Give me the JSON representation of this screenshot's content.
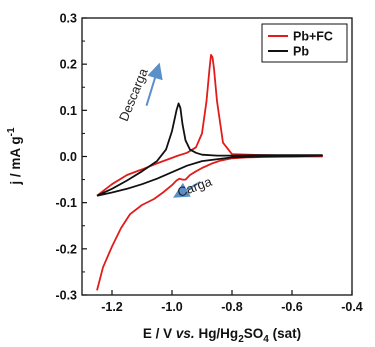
{
  "chart_data": {
    "type": "line",
    "xlabel_parts": [
      "E / V ",
      "vs.",
      " Hg/Hg",
      "2",
      "SO",
      "4",
      " (sat)"
    ],
    "ylabel_parts": [
      "j / mA g",
      "-1"
    ],
    "xlim": [
      -1.3,
      -0.4
    ],
    "ylim": [
      -0.3,
      0.3
    ],
    "x_ticks": [
      -1.2,
      -1.0,
      -0.8,
      -0.6,
      -0.4
    ],
    "x_tick_labels": [
      "-1.2",
      "-1.0",
      "-0.8",
      "-0.6",
      "-0.4"
    ],
    "y_ticks": [
      -0.3,
      -0.2,
      -0.1,
      0.0,
      0.1,
      0.2,
      0.3
    ],
    "y_tick_labels": [
      "-0.3",
      "-0.2",
      "-0.1",
      "0.0",
      "0.1",
      "0.2",
      "0.3"
    ],
    "legend_position": "top-right",
    "grid": false,
    "series": [
      {
        "name": "Pb+FC",
        "color": "#e21b1b",
        "x": [
          -1.25,
          -1.23,
          -1.2,
          -1.17,
          -1.14,
          -1.1,
          -1.06,
          -1.03,
          -1.0,
          -0.985,
          -0.975,
          -0.965,
          -0.955,
          -0.94,
          -0.92,
          -0.9,
          -0.87,
          -0.84,
          -0.8,
          -0.75,
          -0.7,
          -0.6,
          -0.5,
          -0.5,
          -0.6,
          -0.7,
          -0.8,
          -0.83,
          -0.85,
          -0.86,
          -0.865,
          -0.87,
          -0.875,
          -0.885,
          -0.9,
          -0.92,
          -0.95,
          -0.98,
          -1.0,
          -1.05,
          -1.1,
          -1.15,
          -1.2,
          -1.25
        ],
        "y": [
          -0.29,
          -0.24,
          -0.195,
          -0.155,
          -0.125,
          -0.105,
          -0.092,
          -0.078,
          -0.062,
          -0.052,
          -0.048,
          -0.05,
          -0.05,
          -0.04,
          -0.032,
          -0.025,
          -0.016,
          -0.009,
          -0.004,
          -0.002,
          -0.001,
          0.0,
          0.0,
          0.002,
          0.002,
          0.003,
          0.005,
          0.03,
          0.12,
          0.19,
          0.215,
          0.22,
          0.19,
          0.12,
          0.05,
          0.02,
          0.008,
          0.002,
          -0.003,
          -0.015,
          -0.028,
          -0.04,
          -0.06,
          -0.085
        ]
      },
      {
        "name": "Pb",
        "color": "#111111",
        "x": [
          -1.25,
          -1.2,
          -1.15,
          -1.1,
          -1.05,
          -1.02,
          -1.0,
          -0.985,
          -0.978,
          -0.972,
          -0.965,
          -0.955,
          -0.94,
          -0.92,
          -0.9,
          -0.85,
          -0.8,
          -0.7,
          -0.6,
          -0.5,
          -0.5,
          -0.6,
          -0.7,
          -0.8,
          -0.9,
          -0.95,
          -1.0,
          -1.05,
          -1.1,
          -1.15,
          -1.2,
          -1.25
        ],
        "y": [
          -0.085,
          -0.07,
          -0.052,
          -0.032,
          -0.01,
          0.015,
          0.055,
          0.1,
          0.115,
          0.105,
          0.07,
          0.035,
          0.015,
          0.008,
          0.004,
          0.002,
          0.002,
          0.003,
          0.003,
          0.003,
          0.002,
          0.0,
          0.0,
          -0.002,
          -0.01,
          -0.02,
          -0.034,
          -0.048,
          -0.06,
          -0.07,
          -0.078,
          -0.085
        ]
      }
    ],
    "annotations": [
      {
        "text": "Descarga",
        "x": -1.115,
        "y": 0.13,
        "rotate": -68
      },
      {
        "text": "Carga",
        "x": -0.92,
        "y": -0.075,
        "rotate": -20
      }
    ],
    "arrows": [
      {
        "color": "#5b8fc7",
        "from": [
          -1.085,
          0.11
        ],
        "to": [
          -1.045,
          0.195
        ]
      },
      {
        "color": "#5b8fc7",
        "from": [
          -0.905,
          -0.055
        ],
        "to": [
          -0.985,
          -0.085
        ]
      }
    ]
  }
}
